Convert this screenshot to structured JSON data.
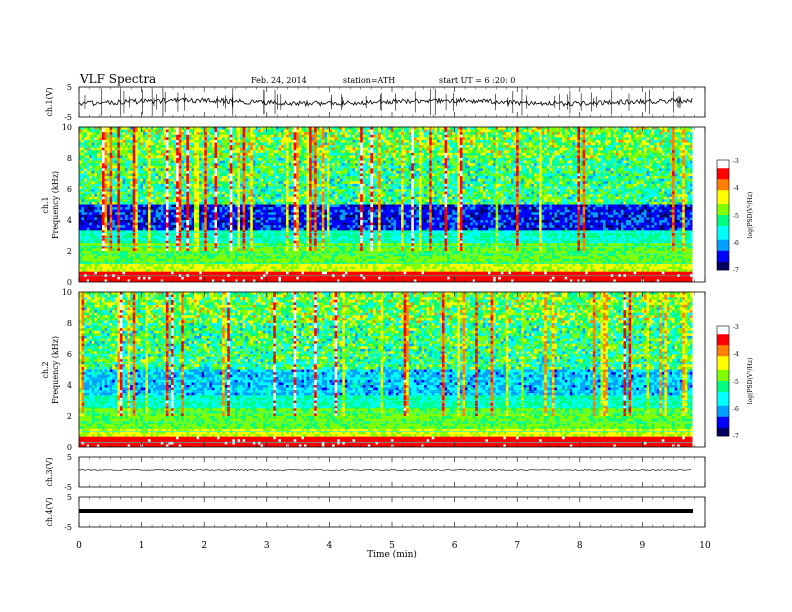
{
  "header": {
    "title": "VLF Spectra",
    "date": "Feb. 24, 2014",
    "station": "station=ATH",
    "start_ut": "start UT = 6 :20: 0"
  },
  "chart_data": [
    {
      "type": "line",
      "panel": "ch1-waveform",
      "ylabel": "ch.1(V)",
      "ylim": [
        -5,
        5
      ],
      "y_ticks": [
        5,
        -5
      ],
      "x_range": [
        0,
        9.8
      ],
      "description_values": {
        "baseline": 0,
        "noise_amplitude": 1
      }
    },
    {
      "type": "heatmap",
      "panel": "ch1-spectrogram",
      "ylabel_channel": "ch.1",
      "ylabel": "Frequency (kHz)",
      "ylim": [
        0,
        10
      ],
      "y_ticks": [
        0,
        2,
        4,
        6,
        8,
        10
      ],
      "x_range": [
        0,
        9.8
      ],
      "colorbar": {
        "label": "log(PSD(V²/Hz)",
        "ticks": [
          -3,
          -4,
          -5,
          -6,
          -7
        ],
        "range": [
          -7,
          -3
        ]
      }
    },
    {
      "type": "heatmap",
      "panel": "ch2-spectrogram",
      "ylabel_channel": "ch.2",
      "ylabel": "Frequency (kHz)",
      "ylim": [
        0,
        10
      ],
      "y_ticks": [
        0,
        2,
        4,
        6,
        8,
        10
      ],
      "x_range": [
        0,
        9.8
      ],
      "colorbar": {
        "label": "log(PSD(V²/Hz)",
        "ticks": [
          -3,
          -4,
          -5,
          -6,
          -7
        ],
        "range": [
          -7,
          -3
        ]
      }
    },
    {
      "type": "line",
      "panel": "ch3-waveform",
      "ylabel": "ch.3(V)",
      "ylim": [
        -5,
        5
      ],
      "y_ticks": [
        5,
        -5
      ],
      "x_range": [
        0,
        9.8
      ]
    },
    {
      "type": "line",
      "panel": "ch4-waveform",
      "ylabel": "ch.4(V)",
      "ylim": [
        -5,
        5
      ],
      "y_ticks": [
        5,
        -5
      ],
      "x_range": [
        0,
        9.8
      ]
    }
  ],
  "xaxis": {
    "xlabel": "Time (min)",
    "xlim": [
      0,
      10
    ],
    "ticks": [
      0,
      1,
      2,
      3,
      4,
      5,
      6,
      7,
      8,
      9,
      10
    ]
  },
  "colors": {
    "scale": [
      "#000060",
      "#0000ff",
      "#00a0ff",
      "#00ffff",
      "#00ff80",
      "#80ff00",
      "#ffff00",
      "#ff8000",
      "#ff0000",
      "#ffffff"
    ]
  }
}
